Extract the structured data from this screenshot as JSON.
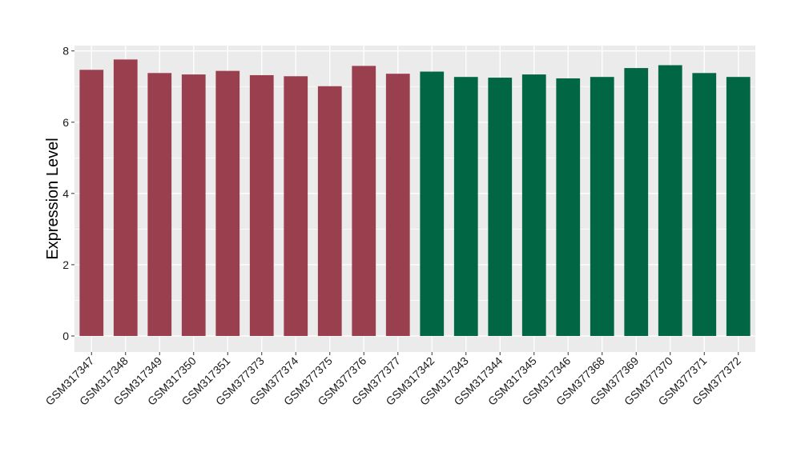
{
  "chart_data": {
    "type": "bar",
    "title": "",
    "xlabel": "",
    "ylabel": "Expression Level",
    "ylim": [
      -0.45,
      8.15
    ],
    "yticks": [
      0,
      2,
      4,
      6,
      8
    ],
    "grid": true,
    "legend": "none",
    "categories": [
      "GSM317347",
      "GSM317348",
      "GSM317349",
      "GSM317350",
      "GSM317351",
      "GSM377373",
      "GSM377374",
      "GSM377375",
      "GSM377376",
      "GSM377377",
      "GSM317342",
      "GSM317343",
      "GSM317344",
      "GSM317345",
      "GSM317346",
      "GSM377368",
      "GSM377369",
      "GSM377370",
      "GSM377371",
      "GSM377372"
    ],
    "values": [
      7.47,
      7.76,
      7.38,
      7.34,
      7.44,
      7.32,
      7.29,
      7.01,
      7.58,
      7.36,
      7.42,
      7.27,
      7.25,
      7.34,
      7.23,
      7.27,
      7.52,
      7.6,
      7.38,
      7.27
    ],
    "group_colors": [
      "#9a3f4e",
      "#9a3f4e",
      "#9a3f4e",
      "#9a3f4e",
      "#9a3f4e",
      "#9a3f4e",
      "#9a3f4e",
      "#9a3f4e",
      "#9a3f4e",
      "#9a3f4e",
      "#006644",
      "#006644",
      "#006644",
      "#006644",
      "#006644",
      "#006644",
      "#006644",
      "#006644",
      "#006644",
      "#006644"
    ],
    "panel_color": "#ebebeb",
    "grid_color": "#ffffff"
  }
}
